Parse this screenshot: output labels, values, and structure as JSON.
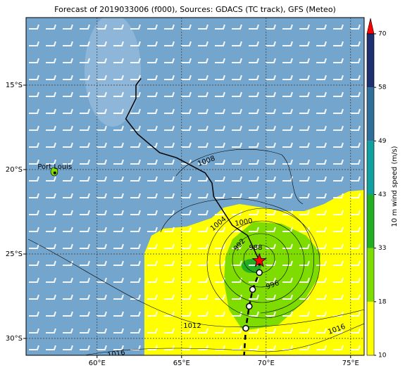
{
  "chart_data": {
    "type": "map",
    "title": "Forecast of 2019033006 (f000), Sources: GDACS (TC track), GFS (Meteo)",
    "xlim": [
      55.8,
      75.8
    ],
    "ylim": [
      -31,
      -11
    ],
    "xticks": [
      {
        "value": 60,
        "label": "60°E"
      },
      {
        "value": 65,
        "label": "65°E"
      },
      {
        "value": 70,
        "label": "70°E"
      },
      {
        "value": 75,
        "label": "75°E"
      }
    ],
    "yticks": [
      {
        "value": -15,
        "label": "15°S"
      },
      {
        "value": -20,
        "label": "20°S"
      },
      {
        "value": -25,
        "label": "25°S"
      },
      {
        "value": -30,
        "label": "30°S"
      }
    ],
    "grid": true,
    "track": {
      "color": "#000000",
      "x": [
        62.6,
        62.3,
        62.3,
        61.7,
        62.4,
        63.7,
        64.7,
        66.4,
        66.8,
        66.9,
        68.0,
        68.9,
        69.6
      ],
      "y": [
        -14.6,
        -15.0,
        -15.8,
        -17.0,
        -17.9,
        -19.0,
        -19.3,
        -20.2,
        -20.8,
        -21.6,
        -23.3,
        -23.9,
        -25.4
      ]
    },
    "forecast": {
      "color": "#000000",
      "x": [
        69.6,
        69.6,
        69.2,
        69.0,
        68.8,
        68.7
      ],
      "y": [
        -25.4,
        -26.1,
        -27.1,
        -28.1,
        -29.4,
        -31.0
      ]
    },
    "forecast_points": {
      "x": [
        69.6,
        69.2,
        69.0,
        68.8
      ],
      "y": [
        -26.1,
        -27.1,
        -28.1,
        -29.4
      ]
    },
    "current_position": {
      "x": 69.6,
      "y": -25.4,
      "color": "#ff0000"
    },
    "city": {
      "label": "Port Louis",
      "x": 57.5,
      "y": -20.2
    },
    "contour_labels": [
      "1008",
      "1004",
      "1000",
      "992",
      "988",
      "996",
      "1012",
      "1016",
      "1016"
    ],
    "colorbar": {
      "label": "10 m wind speed (m/s)",
      "ticks": [
        10,
        18,
        33,
        43,
        49,
        58,
        70
      ],
      "colors": [
        "#ffff00",
        "#7fdc00",
        "#22b022",
        "#11a0a0",
        "#2e6e98",
        "#1c2f6e"
      ],
      "extend_color": "#ff0000"
    }
  }
}
